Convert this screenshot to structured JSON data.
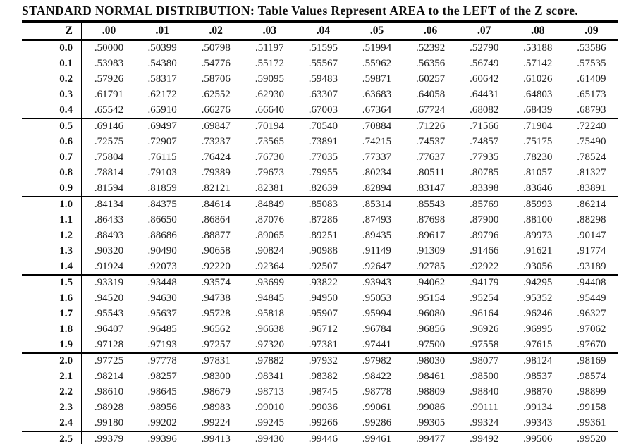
{
  "title": "STANDARD NORMAL DISTRIBUTION: Table Values Represent AREA to the LEFT of the Z score.",
  "colors": {
    "background": "#ffffff",
    "text": "#1f1f1f",
    "bold_text": "#0d0d0d",
    "rule_lines": "#000000"
  },
  "table": {
    "corner_header": "Z",
    "column_headers": [
      ".00",
      ".01",
      ".02",
      ".03",
      ".04",
      ".05",
      ".06",
      ".07",
      ".08",
      ".09"
    ],
    "rows": [
      {
        "z": "0.0",
        "values": [
          ".50000",
          ".50399",
          ".50798",
          ".51197",
          ".51595",
          ".51994",
          ".52392",
          ".52790",
          ".53188",
          ".53586"
        ]
      },
      {
        "z": "0.1",
        "values": [
          ".53983",
          ".54380",
          ".54776",
          ".55172",
          ".55567",
          ".55962",
          ".56356",
          ".56749",
          ".57142",
          ".57535"
        ]
      },
      {
        "z": "0.2",
        "values": [
          ".57926",
          ".58317",
          ".58706",
          ".59095",
          ".59483",
          ".59871",
          ".60257",
          ".60642",
          ".61026",
          ".61409"
        ]
      },
      {
        "z": "0.3",
        "values": [
          ".61791",
          ".62172",
          ".62552",
          ".62930",
          ".63307",
          ".63683",
          ".64058",
          ".64431",
          ".64803",
          ".65173"
        ]
      },
      {
        "z": "0.4",
        "values": [
          ".65542",
          ".65910",
          ".66276",
          ".66640",
          ".67003",
          ".67364",
          ".67724",
          ".68082",
          ".68439",
          ".68793"
        ]
      },
      {
        "z": "0.5",
        "values": [
          ".69146",
          ".69497",
          ".69847",
          ".70194",
          ".70540",
          ".70884",
          ".71226",
          ".71566",
          ".71904",
          ".72240"
        ]
      },
      {
        "z": "0.6",
        "values": [
          ".72575",
          ".72907",
          ".73237",
          ".73565",
          ".73891",
          ".74215",
          ".74537",
          ".74857",
          ".75175",
          ".75490"
        ]
      },
      {
        "z": "0.7",
        "values": [
          ".75804",
          ".76115",
          ".76424",
          ".76730",
          ".77035",
          ".77337",
          ".77637",
          ".77935",
          ".78230",
          ".78524"
        ]
      },
      {
        "z": "0.8",
        "values": [
          ".78814",
          ".79103",
          ".79389",
          ".79673",
          ".79955",
          ".80234",
          ".80511",
          ".80785",
          ".81057",
          ".81327"
        ]
      },
      {
        "z": "0.9",
        "values": [
          ".81594",
          ".81859",
          ".82121",
          ".82381",
          ".82639",
          ".82894",
          ".83147",
          ".83398",
          ".83646",
          ".83891"
        ]
      },
      {
        "z": "1.0",
        "values": [
          ".84134",
          ".84375",
          ".84614",
          ".84849",
          ".85083",
          ".85314",
          ".85543",
          ".85769",
          ".85993",
          ".86214"
        ]
      },
      {
        "z": "1.1",
        "values": [
          ".86433",
          ".86650",
          ".86864",
          ".87076",
          ".87286",
          ".87493",
          ".87698",
          ".87900",
          ".88100",
          ".88298"
        ]
      },
      {
        "z": "1.2",
        "values": [
          ".88493",
          ".88686",
          ".88877",
          ".89065",
          ".89251",
          ".89435",
          ".89617",
          ".89796",
          ".89973",
          ".90147"
        ]
      },
      {
        "z": "1.3",
        "values": [
          ".90320",
          ".90490",
          ".90658",
          ".90824",
          ".90988",
          ".91149",
          ".91309",
          ".91466",
          ".91621",
          ".91774"
        ]
      },
      {
        "z": "1.4",
        "values": [
          ".91924",
          ".92073",
          ".92220",
          ".92364",
          ".92507",
          ".92647",
          ".92785",
          ".92922",
          ".93056",
          ".93189"
        ]
      },
      {
        "z": "1.5",
        "values": [
          ".93319",
          ".93448",
          ".93574",
          ".93699",
          ".93822",
          ".93943",
          ".94062",
          ".94179",
          ".94295",
          ".94408"
        ]
      },
      {
        "z": "1.6",
        "values": [
          ".94520",
          ".94630",
          ".94738",
          ".94845",
          ".94950",
          ".95053",
          ".95154",
          ".95254",
          ".95352",
          ".95449"
        ]
      },
      {
        "z": "1.7",
        "values": [
          ".95543",
          ".95637",
          ".95728",
          ".95818",
          ".95907",
          ".95994",
          ".96080",
          ".96164",
          ".96246",
          ".96327"
        ]
      },
      {
        "z": "1.8",
        "values": [
          ".96407",
          ".96485",
          ".96562",
          ".96638",
          ".96712",
          ".96784",
          ".96856",
          ".96926",
          ".96995",
          ".97062"
        ]
      },
      {
        "z": "1.9",
        "values": [
          ".97128",
          ".97193",
          ".97257",
          ".97320",
          ".97381",
          ".97441",
          ".97500",
          ".97558",
          ".97615",
          ".97670"
        ]
      },
      {
        "z": "2.0",
        "values": [
          ".97725",
          ".97778",
          ".97831",
          ".97882",
          ".97932",
          ".97982",
          ".98030",
          ".98077",
          ".98124",
          ".98169"
        ]
      },
      {
        "z": "2.1",
        "values": [
          ".98214",
          ".98257",
          ".98300",
          ".98341",
          ".98382",
          ".98422",
          ".98461",
          ".98500",
          ".98537",
          ".98574"
        ]
      },
      {
        "z": "2.2",
        "values": [
          ".98610",
          ".98645",
          ".98679",
          ".98713",
          ".98745",
          ".98778",
          ".98809",
          ".98840",
          ".98870",
          ".98899"
        ]
      },
      {
        "z": "2.3",
        "values": [
          ".98928",
          ".98956",
          ".98983",
          ".99010",
          ".99036",
          ".99061",
          ".99086",
          ".99111",
          ".99134",
          ".99158"
        ]
      },
      {
        "z": "2.4",
        "values": [
          ".99180",
          ".99202",
          ".99224",
          ".99245",
          ".99266",
          ".99286",
          ".99305",
          ".99324",
          ".99343",
          ".99361"
        ]
      },
      {
        "z": "2.5",
        "partial": true,
        "values": [
          ".99379",
          ".99396",
          ".99413",
          ".99430",
          ".99446",
          ".99461",
          ".99477",
          ".99492",
          ".99506",
          ".99520"
        ]
      }
    ]
  }
}
